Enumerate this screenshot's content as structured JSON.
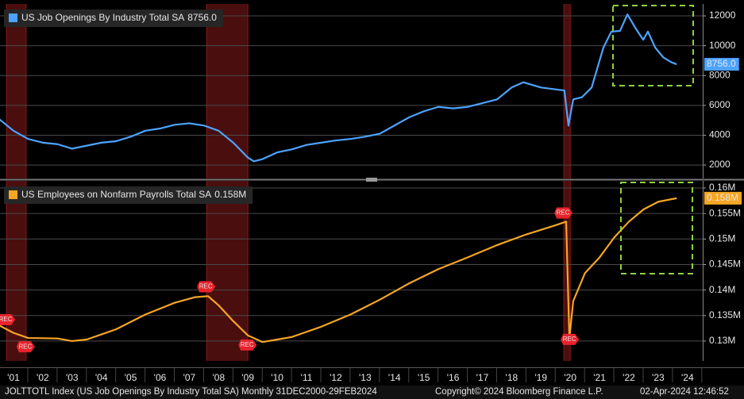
{
  "chart_data": [
    {
      "type": "line",
      "xlim": [
        2001.04,
        2025.02
      ],
      "ylim": [
        1100,
        12800
      ],
      "yticks": [
        2000,
        4000,
        6000,
        8000,
        10000,
        12000
      ],
      "grid": true,
      "legend": "top-left",
      "last_value_label": "8756.0",
      "series": [
        {
          "name": "US Job Openings By Industry Total SA",
          "color": "#4da3ff",
          "x": [
            2001.0,
            2001.5,
            2002.0,
            2002.5,
            2003.0,
            2003.5,
            2004.0,
            2004.5,
            2005.0,
            2005.5,
            2006.0,
            2006.5,
            2007.0,
            2007.5,
            2008.0,
            2008.5,
            2009.0,
            2009.5,
            2009.7,
            2010.0,
            2010.5,
            2011.0,
            2011.5,
            2012.0,
            2012.5,
            2013.0,
            2013.5,
            2014.0,
            2014.5,
            2015.0,
            2015.5,
            2016.0,
            2016.5,
            2017.0,
            2017.5,
            2018.0,
            2018.5,
            2018.9,
            2019.5,
            2019.9,
            2020.3,
            2020.44,
            2020.6,
            2020.9,
            2021.23,
            2021.63,
            2021.9,
            2022.2,
            2022.45,
            2022.72,
            2022.99,
            2023.15,
            2023.4,
            2023.67,
            2023.94,
            2024.13
          ],
          "values": [
            5100,
            4300,
            3750,
            3500,
            3400,
            3100,
            3300,
            3500,
            3600,
            3900,
            4300,
            4450,
            4700,
            4800,
            4650,
            4300,
            3500,
            2500,
            2250,
            2400,
            2850,
            3050,
            3350,
            3500,
            3650,
            3750,
            3900,
            4100,
            4650,
            5200,
            5600,
            5900,
            5800,
            5900,
            6150,
            6400,
            7200,
            7550,
            7200,
            7100,
            7000,
            4650,
            6400,
            6550,
            7200,
            9870,
            10940,
            11000,
            12100,
            11200,
            10400,
            10950,
            9870,
            9230,
            8900,
            8756
          ]
        }
      ]
    },
    {
      "type": "line",
      "xlim": [
        2001.04,
        2025.02
      ],
      "ylim": [
        0.1261,
        0.1614
      ],
      "yticks": [
        {
          "value": 0.13,
          "label": "0.13M"
        },
        {
          "value": 0.135,
          "label": "0.135M"
        },
        {
          "value": 0.14,
          "label": "0.14M"
        },
        {
          "value": 0.145,
          "label": "0.145M"
        },
        {
          "value": 0.15,
          "label": "0.15M"
        },
        {
          "value": 0.155,
          "label": "0.155M"
        },
        {
          "value": 0.16,
          "label": "0.16M"
        }
      ],
      "xticks": [
        {
          "value": 2001.5,
          "label": "'01"
        },
        {
          "value": 2002.5,
          "label": "'02"
        },
        {
          "value": 2003.5,
          "label": "'03"
        },
        {
          "value": 2004.5,
          "label": "'04"
        },
        {
          "value": 2005.5,
          "label": "'05"
        },
        {
          "value": 2006.5,
          "label": "'06"
        },
        {
          "value": 2007.5,
          "label": "'07"
        },
        {
          "value": 2008.5,
          "label": "'08"
        },
        {
          "value": 2009.5,
          "label": "'09"
        },
        {
          "value": 2010.5,
          "label": "'10"
        },
        {
          "value": 2011.5,
          "label": "'11"
        },
        {
          "value": 2012.5,
          "label": "'12"
        },
        {
          "value": 2013.5,
          "label": "'13"
        },
        {
          "value": 2014.5,
          "label": "'14"
        },
        {
          "value": 2015.5,
          "label": "'15"
        },
        {
          "value": 2016.5,
          "label": "'16"
        },
        {
          "value": 2017.5,
          "label": "'17"
        },
        {
          "value": 2018.5,
          "label": "'18"
        },
        {
          "value": 2019.5,
          "label": "'19"
        },
        {
          "value": 2020.5,
          "label": "'20"
        },
        {
          "value": 2021.5,
          "label": "'21"
        },
        {
          "value": 2022.5,
          "label": "'22"
        },
        {
          "value": 2023.5,
          "label": "'23"
        },
        {
          "value": 2024.5,
          "label": "'24"
        }
      ],
      "grid": true,
      "legend": "top-left",
      "last_value_label": "0.158M",
      "series": [
        {
          "name": "US Employees on Nonfarm Payrolls Total SA",
          "color": "#f5a623",
          "x": [
            2001.0,
            2001.5,
            2002.0,
            2003.0,
            2003.5,
            2004.0,
            2005.0,
            2006.0,
            2007.0,
            2007.7,
            2008.14,
            2008.5,
            2009.0,
            2009.5,
            2010.0,
            2010.5,
            2011.0,
            2012.0,
            2013.0,
            2014.0,
            2015.0,
            2016.0,
            2017.0,
            2018.0,
            2019.0,
            2020.0,
            2020.36,
            2020.47,
            2020.6,
            2021.0,
            2021.5,
            2022.0,
            2022.5,
            2023.0,
            2023.5,
            2024.13
          ],
          "values": [
            0.1331,
            0.1316,
            0.1306,
            0.1305,
            0.13,
            0.1303,
            0.1323,
            0.1352,
            0.1375,
            0.1386,
            0.1388,
            0.137,
            0.1339,
            0.1311,
            0.1298,
            0.1303,
            0.1308,
            0.1328,
            0.1352,
            0.1381,
            0.1413,
            0.1441,
            0.1464,
            0.1488,
            0.1509,
            0.1527,
            0.1534,
            0.1305,
            0.1378,
            0.1433,
            0.1464,
            0.1503,
            0.1534,
            0.1558,
            0.1573,
            0.158
          ]
        }
      ]
    }
  ],
  "recessions": [
    [
      2001.26,
      2001.93
    ],
    [
      2008.09,
      2009.5
    ],
    [
      2020.28,
      2020.5
    ]
  ],
  "recession_label": "REC",
  "footer": {
    "source": "JOLTTOTL Index (US Job Openings By Industry Total SA)  Monthly 31DEC2000-29FEB2024",
    "copyright": "Copyright© 2024 Bloomberg Finance L.P.",
    "timestamp": "02-Apr-2024 12:46:52"
  }
}
